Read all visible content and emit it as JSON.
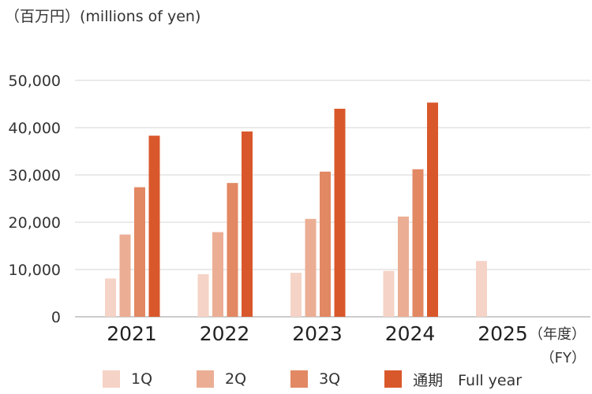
{
  "unit_label": "（百万円）(millions of yen)",
  "axis_suffix_line1": "（年度）",
  "axis_suffix_line2": "（FY）",
  "legend": [
    {
      "label": "1Q",
      "color": "#f5d3c6"
    },
    {
      "label": "2Q",
      "color": "#ebae94"
    },
    {
      "label": "3Q",
      "color": "#e28863"
    },
    {
      "label": "通期　Full year",
      "color": "#d9582b"
    }
  ],
  "chart_data": {
    "type": "bar",
    "categories": [
      "2021",
      "2022",
      "2023",
      "2024",
      "2025"
    ],
    "series": [
      {
        "name": "1Q",
        "values": [
          8100,
          9000,
          9300,
          9700,
          11800
        ]
      },
      {
        "name": "2Q",
        "values": [
          17400,
          17900,
          20700,
          21200,
          null
        ]
      },
      {
        "name": "3Q",
        "values": [
          27400,
          28300,
          30700,
          31200,
          null
        ]
      },
      {
        "name": "通期　Full year",
        "values": [
          38300,
          39200,
          44000,
          45300,
          null
        ]
      }
    ],
    "ylim": [
      0,
      50000
    ],
    "yticks": [
      0,
      10000,
      20000,
      30000,
      40000,
      50000
    ],
    "ytick_labels": [
      "0",
      "10,000",
      "20,000",
      "30,000",
      "40,000",
      "50,000"
    ],
    "grid": true,
    "legend_position": "bottom"
  }
}
